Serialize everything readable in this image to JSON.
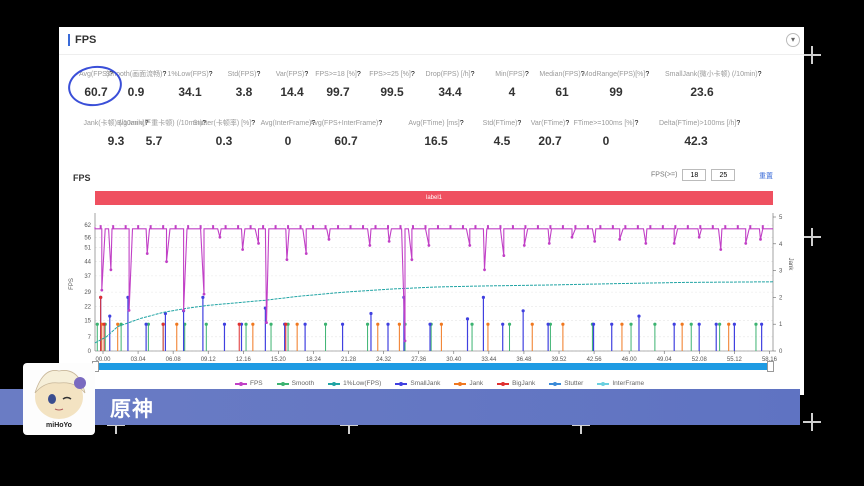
{
  "panel": {
    "title": "FPS",
    "collapse_icon": "chevron-down-icon"
  },
  "metrics_row1": [
    {
      "label": "Avg(FPS)",
      "value": "60.7",
      "help": "?"
    },
    {
      "label": "Smooth(画面流畅)",
      "value": "0.9",
      "help": "?"
    },
    {
      "label": "1%Low(FPS)",
      "value": "34.1",
      "help": "?"
    },
    {
      "label": "Std(FPS)",
      "value": "3.8",
      "help": "?"
    },
    {
      "label": "Var(FPS)",
      "value": "14.4",
      "help": "?"
    },
    {
      "label": "FPS>=18 [%]",
      "value": "99.7",
      "help": "?"
    },
    {
      "label": "FPS>=25 [%]",
      "value": "99.5",
      "help": "?"
    },
    {
      "label": "Drop(FPS) [/h]",
      "value": "34.4",
      "help": "?"
    },
    {
      "label": "Min(FPS)",
      "value": "4",
      "help": "?"
    },
    {
      "label": "Median(FPS)",
      "value": "61",
      "help": "?"
    },
    {
      "label": "ModRange(FPS)[%]",
      "value": "99",
      "help": "?"
    },
    {
      "label": "SmallJank(微小卡顿) (/10min)",
      "value": "23.6",
      "help": "?"
    }
  ],
  "metrics_row2": [
    {
      "label": "Jank(卡顿) (/10min)",
      "value": "9.3",
      "help": "?"
    },
    {
      "label": "BigJank(严重卡顿) (/10min)",
      "value": "5.7",
      "help": "?"
    },
    {
      "label": "Stutter(卡顿率) [%]",
      "value": "0.3",
      "help": "?"
    },
    {
      "label": "Avg(InterFrame)",
      "value": "0",
      "help": "?"
    },
    {
      "label": "Avg(FPS+InterFrame)",
      "value": "60.7",
      "help": "?"
    },
    {
      "label": "Avg(FTime) [ms]",
      "value": "16.5",
      "help": "?"
    },
    {
      "label": "Std(FTime)",
      "value": "4.5",
      "help": "?"
    },
    {
      "label": "Var(FTime)",
      "value": "20.7",
      "help": "?"
    },
    {
      "label": "FTime>=100ms [%]",
      "value": "0",
      "help": "?"
    },
    {
      "label": "Delta(FTime)>100ms [/h]",
      "value": "42.3",
      "help": "?"
    }
  ],
  "chart_section": {
    "title": "FPS",
    "filter_label": "FPS(>=)",
    "filter_value_1": "18",
    "filter_value_2": "25",
    "reset_label": "重置",
    "label_bar": "label1"
  },
  "chart_data": {
    "type": "line",
    "left_axis": {
      "ticks": [
        0,
        7,
        15,
        22,
        29,
        37,
        44,
        51,
        56,
        62
      ],
      "ylabel": "FPS",
      "ylim": [
        0,
        66
      ]
    },
    "right_axis": {
      "ticks": [
        0,
        1,
        2,
        3,
        4,
        5
      ],
      "ylabel": "Jank",
      "ylim": [
        0,
        5
      ]
    },
    "x_ticks": [
      "00.00",
      "03.04",
      "06.08",
      "09.12",
      "12.16",
      "15.20",
      "18.24",
      "21.28",
      "24.32",
      "27.36",
      "30.40",
      "33.44",
      "36.48",
      "39.52",
      "42.56",
      "46.00",
      "49.04",
      "52.08",
      "55.12",
      "58.16"
    ],
    "x_minutes_range": [
      0,
      59.7
    ],
    "series": [
      {
        "name": "FPS",
        "color": "#c140c6",
        "baseline": 61,
        "dips": [
          [
            0.6,
            30
          ],
          [
            1.4,
            40
          ],
          [
            3.0,
            20
          ],
          [
            4.6,
            48
          ],
          [
            6.3,
            44
          ],
          [
            7.8,
            20
          ],
          [
            9.6,
            28
          ],
          [
            11.0,
            56
          ],
          [
            13.0,
            50
          ],
          [
            14.4,
            53
          ],
          [
            15.1,
            14
          ],
          [
            16.9,
            45
          ],
          [
            18.6,
            48
          ],
          [
            20.6,
            55
          ],
          [
            24.2,
            52
          ],
          [
            25.9,
            54
          ],
          [
            27.3,
            5
          ],
          [
            27.9,
            45
          ],
          [
            29.4,
            52
          ],
          [
            33.0,
            52
          ],
          [
            34.3,
            40
          ],
          [
            36.0,
            47
          ],
          [
            37.8,
            52
          ],
          [
            40.0,
            53
          ],
          [
            42.0,
            56
          ],
          [
            44.0,
            54
          ],
          [
            46.2,
            55
          ],
          [
            48.5,
            53
          ],
          [
            51.0,
            53
          ],
          [
            53.2,
            56
          ],
          [
            55.1,
            50
          ],
          [
            57.3,
            53
          ],
          [
            58.6,
            55
          ]
        ]
      },
      {
        "name": "Smooth",
        "color": "#3cb371",
        "spikes": [
          [
            0.2,
            1
          ],
          [
            0.9,
            1
          ],
          [
            2.3,
            1
          ],
          [
            4.7,
            1
          ],
          [
            6.0,
            1
          ],
          [
            7.9,
            1
          ],
          [
            9.8,
            1
          ],
          [
            13.3,
            1
          ],
          [
            15.5,
            1
          ],
          [
            17.0,
            1
          ],
          [
            20.3,
            1
          ],
          [
            24.0,
            1
          ],
          [
            27.3,
            1
          ],
          [
            29.6,
            1
          ],
          [
            33.2,
            1
          ],
          [
            36.5,
            1
          ],
          [
            40.1,
            1
          ],
          [
            43.8,
            1
          ],
          [
            47.2,
            1
          ],
          [
            49.3,
            1
          ],
          [
            52.5,
            1
          ],
          [
            55.0,
            1
          ],
          [
            58.2,
            1
          ]
        ]
      },
      {
        "name": "1%Low(FPS)",
        "color": "#20a4a4",
        "values": [
          [
            0,
            4
          ],
          [
            1,
            7
          ],
          [
            2,
            12
          ],
          [
            4,
            16
          ],
          [
            6,
            19
          ],
          [
            8,
            21
          ],
          [
            10,
            22.5
          ],
          [
            12,
            23.5
          ],
          [
            15,
            25
          ],
          [
            18,
            27
          ],
          [
            22,
            29
          ],
          [
            26,
            30.5
          ],
          [
            30,
            31.5
          ],
          [
            34,
            32
          ],
          [
            40,
            32.5
          ],
          [
            46,
            33.2
          ],
          [
            52,
            33.8
          ],
          [
            59.7,
            34.1
          ]
        ]
      },
      {
        "name": "SmallJank",
        "color": "#4040e0",
        "spikes": [
          [
            0.5,
            2
          ],
          [
            1.3,
            1.3
          ],
          [
            2.9,
            2
          ],
          [
            4.5,
            1
          ],
          [
            6.2,
            1.4
          ],
          [
            7.8,
            1.5
          ],
          [
            9.5,
            2
          ],
          [
            11.4,
            1
          ],
          [
            12.9,
            1
          ],
          [
            15.0,
            1.6
          ],
          [
            16.7,
            1
          ],
          [
            18.5,
            1
          ],
          [
            21.8,
            1
          ],
          [
            24.3,
            1.4
          ],
          [
            25.8,
            1
          ],
          [
            27.2,
            2
          ],
          [
            29.5,
            1
          ],
          [
            32.8,
            1.2
          ],
          [
            34.2,
            2
          ],
          [
            35.9,
            1
          ],
          [
            37.7,
            1.5
          ],
          [
            39.9,
            1
          ],
          [
            43.9,
            1
          ],
          [
            45.5,
            1
          ],
          [
            47.9,
            1.3
          ],
          [
            51.0,
            1
          ],
          [
            53.2,
            1
          ],
          [
            54.7,
            1
          ],
          [
            56.3,
            1
          ],
          [
            58.7,
            1
          ]
        ]
      },
      {
        "name": "Jank",
        "color": "#f07820",
        "spikes": [
          [
            0.6,
            1
          ],
          [
            2.0,
            1
          ],
          [
            7.2,
            1
          ],
          [
            13.9,
            1
          ],
          [
            17.8,
            1
          ],
          [
            24.9,
            1
          ],
          [
            26.8,
            1
          ],
          [
            30.5,
            1
          ],
          [
            34.6,
            1
          ],
          [
            38.5,
            1
          ],
          [
            41.2,
            1
          ],
          [
            46.4,
            1
          ],
          [
            51.7,
            1
          ],
          [
            55.8,
            1
          ]
        ]
      },
      {
        "name": "BigJank",
        "color": "#e03030",
        "spikes": [
          [
            0.5,
            2
          ],
          [
            0.8,
            1
          ],
          [
            6.0,
            1
          ],
          [
            12.7,
            1
          ],
          [
            16.8,
            1
          ]
        ]
      },
      {
        "name": "Stutter",
        "color": "#3a8ad8",
        "values": []
      },
      {
        "name": "InterFrame",
        "color": "#6ad0e0",
        "values": []
      }
    ]
  },
  "legend": [
    {
      "name": "FPS",
      "color": "#c140c6"
    },
    {
      "name": "Smooth",
      "color": "#3cb371"
    },
    {
      "name": "1%Low(FPS)",
      "color": "#20a4a4"
    },
    {
      "name": "SmallJank",
      "color": "#4040e0"
    },
    {
      "name": "Jank",
      "color": "#f07820"
    },
    {
      "name": "BigJank",
      "color": "#e03030"
    },
    {
      "name": "Stutter",
      "color": "#3a8ad8"
    },
    {
      "name": "InterFrame",
      "color": "#6ad0e0"
    }
  ],
  "caption": {
    "title": "原神",
    "logo_text": "miHoYo"
  },
  "colors": {
    "accent": "#3a6bd8",
    "label_bar": "#ef5060",
    "scrollbar": "#1e9be3",
    "caption_bar": "#6577c3",
    "annotation_circle": "#3a4fd8"
  }
}
